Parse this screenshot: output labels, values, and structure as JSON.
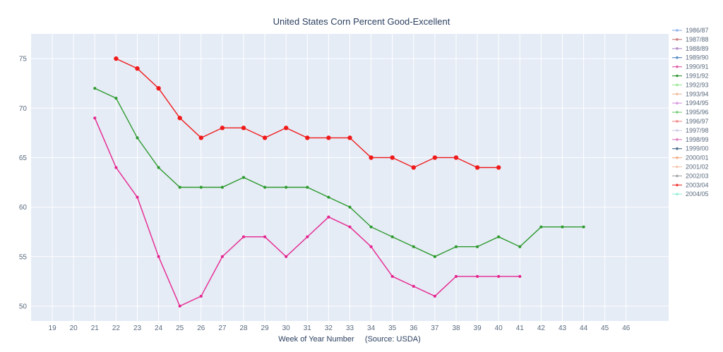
{
  "chart_data": {
    "type": "line",
    "title": "United States Corn Percent Good-Excellent",
    "xlabel": "Week of Year Number     (Source: USDA)",
    "ylabel": "",
    "x_ticks": [
      19,
      20,
      21,
      22,
      23,
      24,
      25,
      26,
      27,
      28,
      29,
      30,
      31,
      32,
      33,
      34,
      35,
      36,
      37,
      38,
      39,
      40,
      41,
      42,
      43,
      44,
      45,
      46
    ],
    "y_ticks": [
      50,
      55,
      60,
      65,
      70,
      75
    ],
    "xlim": [
      18,
      48
    ],
    "ylim": [
      48.5,
      77.5
    ],
    "grid": true,
    "legend_position": "right",
    "series": [
      {
        "name": "1986/87",
        "color": "#8fb3e8",
        "x": [],
        "y": []
      },
      {
        "name": "1987/88",
        "color": "#c97f7f",
        "x": [],
        "y": []
      },
      {
        "name": "1988/89",
        "color": "#b48fc9",
        "x": [],
        "y": []
      },
      {
        "name": "1989/90",
        "color": "#5a8fc9",
        "x": [],
        "y": []
      },
      {
        "name": "1990/91",
        "color": "#e066a8",
        "x": [
          21,
          22,
          23,
          24,
          25,
          26,
          27,
          28,
          29,
          30,
          31,
          32,
          33,
          34,
          35,
          36,
          37,
          38,
          39,
          40,
          41
        ],
        "y": [
          69,
          64,
          61,
          55,
          50,
          51,
          55,
          57,
          57,
          55,
          57,
          59,
          58,
          56,
          53,
          52,
          51,
          53,
          53,
          53,
          53
        ]
      },
      {
        "name": "1991/92",
        "color": "#3a9a3a",
        "x": [
          21,
          22,
          23,
          24,
          25,
          26,
          27,
          28,
          29,
          30,
          31,
          32,
          33,
          34,
          35,
          36,
          37,
          38,
          39,
          40,
          41,
          42,
          43,
          44
        ],
        "y": [
          72,
          71,
          67,
          64,
          62,
          62,
          62,
          63,
          62,
          62,
          62,
          61,
          60,
          58,
          57,
          56,
          55,
          56,
          56,
          57,
          56,
          58,
          58,
          58
        ]
      },
      {
        "name": "1992/93",
        "color": "#9ee89e",
        "x": [],
        "y": []
      },
      {
        "name": "1993/94",
        "color": "#f2c0a0",
        "x": [],
        "y": []
      },
      {
        "name": "1994/95",
        "color": "#d89ee0",
        "x": [],
        "y": []
      },
      {
        "name": "1995/96",
        "color": "#7ccf7c",
        "x": [],
        "y": []
      },
      {
        "name": "1996/97",
        "color": "#f08a8a",
        "x": [],
        "y": []
      },
      {
        "name": "1997/98",
        "color": "#d0d0e8",
        "x": [],
        "y": []
      },
      {
        "name": "1998/99",
        "color": "#e07fbf",
        "x": [],
        "y": []
      },
      {
        "name": "1999/00",
        "color": "#4f6f8f",
        "x": [],
        "y": []
      },
      {
        "name": "2000/01",
        "color": "#f5b08a",
        "x": [],
        "y": []
      },
      {
        "name": "2001/02",
        "color": "#f5c7b0",
        "x": [],
        "y": []
      },
      {
        "name": "2002/03",
        "color": "#a8a8a8",
        "x": [],
        "y": []
      },
      {
        "name": "2003/04",
        "color": "#f04040",
        "x": [
          22,
          23,
          24,
          25,
          26,
          27,
          28,
          29,
          30,
          31,
          32,
          33,
          34,
          35,
          36,
          37,
          38,
          39,
          40
        ],
        "y": [
          75,
          74,
          72,
          69,
          67,
          68,
          68,
          67,
          68,
          67,
          67,
          67,
          65,
          65,
          64,
          65,
          65,
          64,
          64
        ]
      },
      {
        "name": "2004/05",
        "color": "#9ef0d8",
        "x": [],
        "y": []
      }
    ]
  },
  "visible_series": [
    {
      "index": 4,
      "color": "#e6258f",
      "marker": "small"
    },
    {
      "index": 5,
      "color": "#2e9a2e",
      "marker": "small"
    },
    {
      "index": 17,
      "color": "#f01a1a",
      "marker": "large"
    }
  ]
}
